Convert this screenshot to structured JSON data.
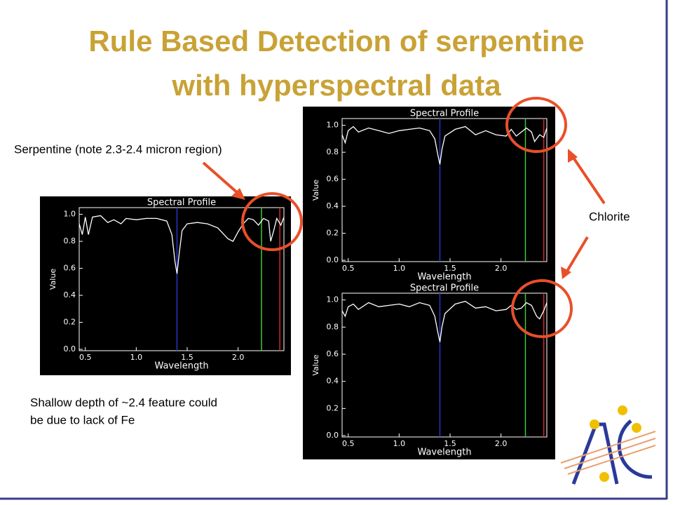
{
  "slide": {
    "title_lines": [
      "Rule Based Detection of serpentine",
      "with hyperspectral data"
    ],
    "annotations": [
      "Serpentine (note 2.3-2.4 micron region)",
      "Chlorite",
      "Shallow depth of ~2.4 feature could",
      "be due to lack of Fe"
    ]
  },
  "chart_data": [
    {
      "type": "line",
      "title": "Spectral Profile",
      "x_label": "Wavelength",
      "y_label": "Value",
      "color": "#ffffff",
      "xlim": [
        0.44,
        2.45
      ],
      "ylim": [
        -0.01,
        1.05
      ],
      "xticks": [
        0.5,
        {
          "value": 1,
          "label": "1.0"
        },
        1.5,
        {
          "value": 2,
          "label": "2.0"
        }
      ],
      "yticks": [
        {
          "value": 0,
          "label": "0.0"
        },
        0.2,
        0.4,
        0.6,
        0.8,
        {
          "value": 1,
          "label": "1.0"
        }
      ],
      "x": [
        0.44,
        0.47,
        0.5,
        0.53,
        0.57,
        0.65,
        0.72,
        0.78,
        0.85,
        0.9,
        1.0,
        1.1,
        1.2,
        1.3,
        1.35,
        1.38,
        1.4,
        1.42,
        1.45,
        1.5,
        1.6,
        1.7,
        1.8,
        1.9,
        1.95,
        2.0,
        2.05,
        2.1,
        2.15,
        2.2,
        2.25,
        2.3,
        2.32,
        2.35,
        2.38,
        2.42,
        2.45
      ],
      "values": [
        0.93,
        0.85,
        0.98,
        0.85,
        0.98,
        0.99,
        0.94,
        0.96,
        0.93,
        0.97,
        0.96,
        0.97,
        0.97,
        0.95,
        0.85,
        0.65,
        0.56,
        0.7,
        0.88,
        0.93,
        0.94,
        0.93,
        0.9,
        0.82,
        0.8,
        0.87,
        0.93,
        0.97,
        0.96,
        0.92,
        0.97,
        0.95,
        0.8,
        0.88,
        0.97,
        0.92,
        0.98
      ],
      "markers": [
        {
          "x": 1.4,
          "color": "#2a36c8"
        },
        {
          "x": 2.23,
          "color": "#3cc83c"
        },
        {
          "x": 2.41,
          "color": "#d02a2a"
        }
      ]
    },
    {
      "type": "line",
      "title": "Spectral Profile",
      "x_label": "Wavelength",
      "y_label": "Value",
      "color": "#ffffff",
      "xlim": [
        0.44,
        2.45
      ],
      "ylim": [
        -0.01,
        1.05
      ],
      "xticks": [
        0.5,
        {
          "value": 1,
          "label": "1.0"
        },
        1.5,
        {
          "value": 2,
          "label": "2.0"
        }
      ],
      "yticks": [
        {
          "value": 0,
          "label": "0.0"
        },
        0.2,
        0.4,
        0.6,
        0.8,
        {
          "value": 1,
          "label": "1.0"
        }
      ],
      "x": [
        0.44,
        0.47,
        0.5,
        0.55,
        0.6,
        0.7,
        0.8,
        0.9,
        1.0,
        1.1,
        1.2,
        1.3,
        1.35,
        1.38,
        1.4,
        1.42,
        1.45,
        1.55,
        1.65,
        1.75,
        1.85,
        1.95,
        2.05,
        2.1,
        2.15,
        2.2,
        2.25,
        2.3,
        2.33,
        2.38,
        2.42,
        2.45
      ],
      "values": [
        0.93,
        0.87,
        0.96,
        0.99,
        0.95,
        0.98,
        0.96,
        0.94,
        0.96,
        0.97,
        0.98,
        0.96,
        0.9,
        0.78,
        0.71,
        0.82,
        0.92,
        0.97,
        0.99,
        0.93,
        0.96,
        0.93,
        0.92,
        0.97,
        0.92,
        0.95,
        0.98,
        0.95,
        0.88,
        0.93,
        0.91,
        0.98
      ],
      "markers": [
        {
          "x": 1.4,
          "color": "#2a36c8"
        },
        {
          "x": 2.24,
          "color": "#3cc83c"
        },
        {
          "x": 2.42,
          "color": "#d02a2a"
        }
      ]
    },
    {
      "type": "line",
      "title": "Spectral Profile",
      "x_label": "Wavelength",
      "y_label": "Value",
      "color": "#ffffff",
      "xlim": [
        0.44,
        2.45
      ],
      "ylim": [
        -0.01,
        1.05
      ],
      "xticks": [
        0.5,
        {
          "value": 1,
          "label": "1.0"
        },
        1.5,
        {
          "value": 2,
          "label": "2.0"
        }
      ],
      "yticks": [
        {
          "value": 0,
          "label": "0.0"
        },
        0.2,
        0.4,
        0.6,
        0.8,
        {
          "value": 1,
          "label": "1.0"
        }
      ],
      "x": [
        0.44,
        0.47,
        0.5,
        0.55,
        0.6,
        0.7,
        0.8,
        0.9,
        1.0,
        1.1,
        1.2,
        1.3,
        1.35,
        1.38,
        1.4,
        1.42,
        1.45,
        1.55,
        1.65,
        1.75,
        1.85,
        1.95,
        2.05,
        2.1,
        2.15,
        2.2,
        2.25,
        2.3,
        2.35,
        2.38,
        2.42,
        2.45
      ],
      "values": [
        0.92,
        0.88,
        0.95,
        0.97,
        0.93,
        0.98,
        0.95,
        0.96,
        0.97,
        0.95,
        0.98,
        0.96,
        0.88,
        0.76,
        0.69,
        0.8,
        0.9,
        0.97,
        0.99,
        0.94,
        0.95,
        0.92,
        0.93,
        0.96,
        0.93,
        0.94,
        0.98,
        0.96,
        0.88,
        0.86,
        0.92,
        0.98
      ],
      "markers": [
        {
          "x": 1.4,
          "color": "#2a36c8"
        },
        {
          "x": 2.24,
          "color": "#3cc83c"
        },
        {
          "x": 2.42,
          "color": "#d02a2a"
        }
      ]
    }
  ]
}
